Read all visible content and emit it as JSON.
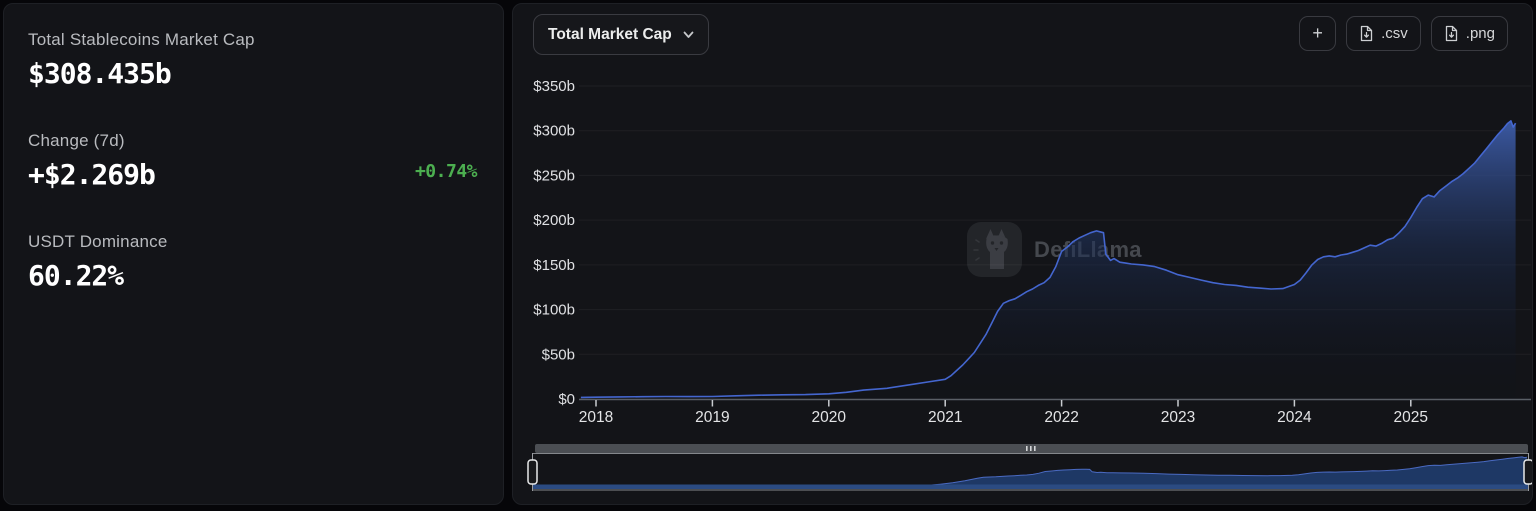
{
  "stats": {
    "market_cap_label": "Total Stablecoins Market Cap",
    "market_cap_value": "$308.435b",
    "change_label": "Change (7d)",
    "change_value": "+$2.269b",
    "change_pct": "+0.74%",
    "dominance_label": "USDT Dominance",
    "dominance_value": "60.22%"
  },
  "toolbar": {
    "metric_selector": "Total Market Cap",
    "add_button": "+",
    "csv_button": ".csv",
    "png_button": ".png"
  },
  "watermark": {
    "text": "DefiLlama"
  },
  "icons": {
    "metric_dropdown": "chevron-down-icon",
    "csv_button": "file-download-icon",
    "png_button": "file-download-icon",
    "stats_expand": "chevron-right-icon",
    "brush_grip": "grip-dots-icon",
    "watermark": "defillama-llama-icon"
  },
  "colors": {
    "accent_line": "#4466cf",
    "positive_green": "#4caf50",
    "card_background": "#131418",
    "page_background": "#060609",
    "area_fill_top": "#3d5ca8",
    "mini_area_fill": "#203c6d"
  },
  "chart_data": {
    "type": "area",
    "title": "Total Market Cap",
    "unit": "USD billions",
    "xlabel": "",
    "ylabel": "",
    "ylim": [
      0,
      350
    ],
    "grid": "horizontal-faint",
    "legend": "none",
    "y_ticks": [
      "$0",
      "$50b",
      "$100b",
      "$150b",
      "$200b",
      "$250b",
      "$300b",
      "$350b"
    ],
    "y_tick_values": [
      0,
      50,
      100,
      150,
      200,
      250,
      300,
      350
    ],
    "x_ticks": [
      "2018",
      "2019",
      "2020",
      "2021",
      "2022",
      "2023",
      "2024",
      "2025"
    ],
    "x_tick_values": [
      2018,
      2019,
      2020,
      2021,
      2022,
      2023,
      2024,
      2025
    ],
    "x": [
      2017.87,
      2018.0,
      2018.2,
      2018.4,
      2018.6,
      2018.8,
      2019.0,
      2019.2,
      2019.4,
      2019.6,
      2019.8,
      2020.0,
      2020.15,
      2020.3,
      2020.5,
      2020.7,
      2020.85,
      2021.0,
      2021.05,
      2021.1,
      2021.15,
      2021.2,
      2021.25,
      2021.3,
      2021.35,
      2021.4,
      2021.45,
      2021.5,
      2021.55,
      2021.6,
      2021.65,
      2021.7,
      2021.75,
      2021.8,
      2021.85,
      2021.9,
      2021.95,
      2022.0,
      2022.05,
      2022.1,
      2022.15,
      2022.2,
      2022.25,
      2022.3,
      2022.33,
      2022.36,
      2022.38,
      2022.42,
      2022.45,
      2022.5,
      2022.55,
      2022.6,
      2022.7,
      2022.8,
      2022.9,
      2023.0,
      2023.1,
      2023.2,
      2023.3,
      2023.4,
      2023.5,
      2023.6,
      2023.7,
      2023.8,
      2023.9,
      2024.0,
      2024.05,
      2024.1,
      2024.15,
      2024.2,
      2024.25,
      2024.3,
      2024.35,
      2024.4,
      2024.45,
      2024.5,
      2024.55,
      2024.6,
      2024.65,
      2024.7,
      2024.75,
      2024.8,
      2024.85,
      2024.9,
      2024.95,
      2025.0,
      2025.05,
      2025.1,
      2025.15,
      2025.2,
      2025.25,
      2025.3,
      2025.35,
      2025.4,
      2025.45,
      2025.5,
      2025.55,
      2025.6,
      2025.65,
      2025.7,
      2025.75,
      2025.8,
      2025.83,
      2025.86,
      2025.88,
      2025.9
    ],
    "values": [
      1.8,
      2,
      2.3,
      2.6,
      2.8,
      2.7,
      2.8,
      3.6,
      4.3,
      4.7,
      4.9,
      5.8,
      7.5,
      10,
      12,
      16,
      19,
      22,
      26,
      32,
      38,
      45,
      52,
      62,
      72,
      85,
      98,
      107,
      110,
      112,
      116,
      120,
      123,
      127,
      130,
      136,
      148,
      165,
      170,
      176,
      180,
      183,
      186,
      188,
      187,
      186,
      162,
      155,
      157,
      153,
      152,
      151,
      150,
      148,
      144,
      139,
      136,
      133,
      130,
      128,
      127,
      125,
      124,
      123,
      123.5,
      128,
      133,
      141,
      150,
      156,
      159,
      160,
      159,
      161,
      162,
      164,
      166,
      169,
      172,
      171,
      174,
      178,
      180,
      186,
      193,
      203,
      214,
      224,
      228,
      226,
      233,
      238,
      243,
      247,
      252,
      258,
      264,
      272,
      280,
      288,
      296,
      303,
      308,
      311,
      304,
      308.4
    ],
    "brush": {
      "selection": "full-range"
    }
  }
}
